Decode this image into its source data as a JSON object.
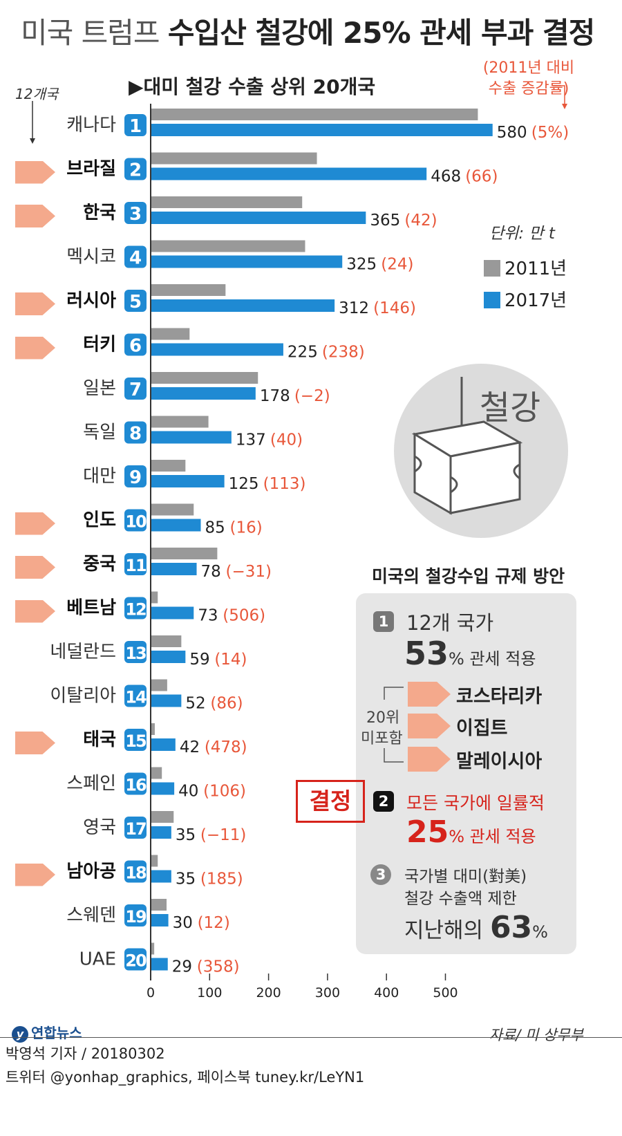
{
  "header": {
    "title_light": "미국 트럼프",
    "title_bold": "수입산 철강에 25% 관세 부과 결정"
  },
  "chart_data": {
    "type": "bar",
    "orientation": "horizontal",
    "subtitle": "▶대미 철강 수출 상위 20개국",
    "unit_label": "단위: 만 t",
    "growth_note_line1": "(2011년 대비",
    "growth_note_line2": "수출 증감률)",
    "group_note": "12개국",
    "xlim": [
      0,
      600
    ],
    "x_ticks": [
      "0",
      "100",
      "200",
      "300",
      "400",
      "500"
    ],
    "x_tick_values": [
      0,
      100,
      200,
      300,
      400,
      500
    ],
    "series_names": [
      "2011년",
      "2017년"
    ],
    "colors": {
      "y2011": "#999999",
      "y2017": "#1f8ad3",
      "growth": "#e8573a",
      "tag": "#f4a98c",
      "badge": "#1f8ad3"
    },
    "rows": [
      {
        "rank": "1",
        "country": "캐나다",
        "v2011": 555,
        "v2017": 580,
        "v2017_label": "580",
        "growth": "(5%)",
        "highlight": false
      },
      {
        "rank": "2",
        "country": "브라질",
        "v2011": 282,
        "v2017": 468,
        "v2017_label": "468",
        "growth": "(66)",
        "highlight": true
      },
      {
        "rank": "3",
        "country": "한국",
        "v2011": 257,
        "v2017": 365,
        "v2017_label": "365",
        "growth": "(42)",
        "highlight": true
      },
      {
        "rank": "4",
        "country": "멕시코",
        "v2011": 262,
        "v2017": 325,
        "v2017_label": "325",
        "growth": "(24)",
        "highlight": false
      },
      {
        "rank": "5",
        "country": "러시아",
        "v2011": 127,
        "v2017": 312,
        "v2017_label": "312",
        "growth": "(146)",
        "highlight": true
      },
      {
        "rank": "6",
        "country": "터키",
        "v2011": 66,
        "v2017": 225,
        "v2017_label": "225",
        "growth": "(238)",
        "highlight": true
      },
      {
        "rank": "7",
        "country": "일본",
        "v2011": 182,
        "v2017": 178,
        "v2017_label": "178",
        "growth": "(−2)",
        "highlight": false
      },
      {
        "rank": "8",
        "country": "독일",
        "v2011": 98,
        "v2017": 137,
        "v2017_label": "137",
        "growth": "(40)",
        "highlight": false
      },
      {
        "rank": "9",
        "country": "대만",
        "v2011": 59,
        "v2017": 125,
        "v2017_label": "125",
        "growth": "(113)",
        "highlight": false
      },
      {
        "rank": "10",
        "country": "인도",
        "v2011": 73,
        "v2017": 85,
        "v2017_label": "85",
        "growth": "(16)",
        "highlight": true
      },
      {
        "rank": "11",
        "country": "중국",
        "v2011": 113,
        "v2017": 78,
        "v2017_label": "78",
        "growth": "(−31)",
        "highlight": true
      },
      {
        "rank": "12",
        "country": "베트남",
        "v2011": 12,
        "v2017": 73,
        "v2017_label": "73",
        "growth": "(506)",
        "highlight": true
      },
      {
        "rank": "13",
        "country": "네덜란드",
        "v2011": 52,
        "v2017": 59,
        "v2017_label": "59",
        "growth": "(14)",
        "highlight": false
      },
      {
        "rank": "14",
        "country": "이탈리아",
        "v2011": 28,
        "v2017": 52,
        "v2017_label": "52",
        "growth": "(86)",
        "highlight": false
      },
      {
        "rank": "15",
        "country": "태국",
        "v2011": 7,
        "v2017": 42,
        "v2017_label": "42",
        "growth": "(478)",
        "highlight": true
      },
      {
        "rank": "16",
        "country": "스페인",
        "v2011": 19,
        "v2017": 40,
        "v2017_label": "40",
        "growth": "(106)",
        "highlight": false
      },
      {
        "rank": "17",
        "country": "영국",
        "v2011": 39,
        "v2017": 35,
        "v2017_label": "35",
        "growth": "(−11)",
        "highlight": false
      },
      {
        "rank": "18",
        "country": "남아공",
        "v2011": 12,
        "v2017": 35,
        "v2017_label": "35",
        "growth": "(185)",
        "highlight": true
      },
      {
        "rank": "19",
        "country": "스웨덴",
        "v2011": 27,
        "v2017": 30,
        "v2017_label": "30",
        "growth": "(12)",
        "highlight": false
      },
      {
        "rank": "20",
        "country": "UAE",
        "v2011": 6,
        "v2017": 29,
        "v2017_label": "29",
        "growth": "(358)",
        "highlight": false
      }
    ]
  },
  "illustration": {
    "label": "철강",
    "icon": "steel-beam-icon"
  },
  "plan": {
    "title": "미국의 철강수입 규제 방안",
    "opt1": {
      "num": "1",
      "line1": "12개 국가",
      "big": "53",
      "suffix": "% 관세 적용"
    },
    "excluded_label_1": "20위",
    "excluded_label_2": "미포함",
    "excluded": [
      "코스타리카",
      "이집트",
      "말레이시아"
    ],
    "decision_stamp": "결정",
    "opt2": {
      "num": "2",
      "line1": "모든 국가에 일률적",
      "big": "25",
      "suffix": "% 관세 적용"
    },
    "opt3": {
      "num": "3",
      "line1": "국가별 대미(對美)",
      "line2": "철강 수출액 제한",
      "prefix": "지난해의 ",
      "big": "63",
      "suffix": "%"
    }
  },
  "footer": {
    "source": "자료/ 미 상무부",
    "logo": "연합뉴스",
    "reporter": "박영석 기자 / 20180302",
    "social": "트위터 @yonhap_graphics, 페이스북 tuney.kr/LeYN1"
  }
}
